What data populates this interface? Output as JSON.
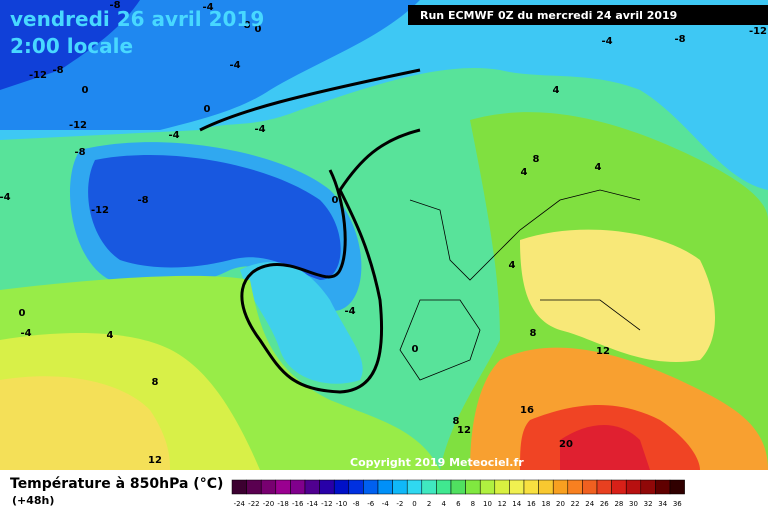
{
  "header": {
    "date": "vendredi 26 avril 2019",
    "time": "2:00 locale",
    "run": "Run ECMWF 0Z du mercredi 24 avril 2019"
  },
  "copyright": "Copyright 2019 Meteociel.fr",
  "legend": {
    "title": "Température à 850hPa (°C)",
    "lead": "(+48h)",
    "labels": [
      -24,
      -22,
      -20,
      -18,
      -16,
      -14,
      -12,
      -10,
      -8,
      -6,
      -4,
      -2,
      0,
      2,
      4,
      6,
      8,
      10,
      12,
      14,
      16,
      18,
      20,
      22,
      24,
      26,
      28,
      30,
      32,
      34,
      36
    ],
    "colors": [
      "#3c0030",
      "#5a0050",
      "#780070",
      "#9a0090",
      "#80008c",
      "#500090",
      "#2800a8",
      "#0010c8",
      "#0030e0",
      "#0060f0",
      "#0090f8",
      "#10b8f8",
      "#30d8f0",
      "#40e8c0",
      "#40e890",
      "#50e060",
      "#80e840",
      "#b0f040",
      "#d8f040",
      "#f0f050",
      "#f8e040",
      "#f8c830",
      "#f8a020",
      "#f88020",
      "#f06020",
      "#e84020",
      "#d82018",
      "#b81010",
      "#900808",
      "#600000",
      "#300000"
    ]
  },
  "contour_labels": [
    -12,
    -8,
    0,
    -12,
    -8,
    -12,
    -8,
    -4,
    -4,
    -4,
    0,
    -4,
    0,
    0,
    4,
    -4,
    -8,
    -12,
    8,
    4,
    4,
    4,
    8,
    12,
    16,
    20,
    12,
    8,
    8,
    12,
    4,
    -4,
    -4,
    0,
    -4,
    0,
    -8,
    -8
  ]
}
